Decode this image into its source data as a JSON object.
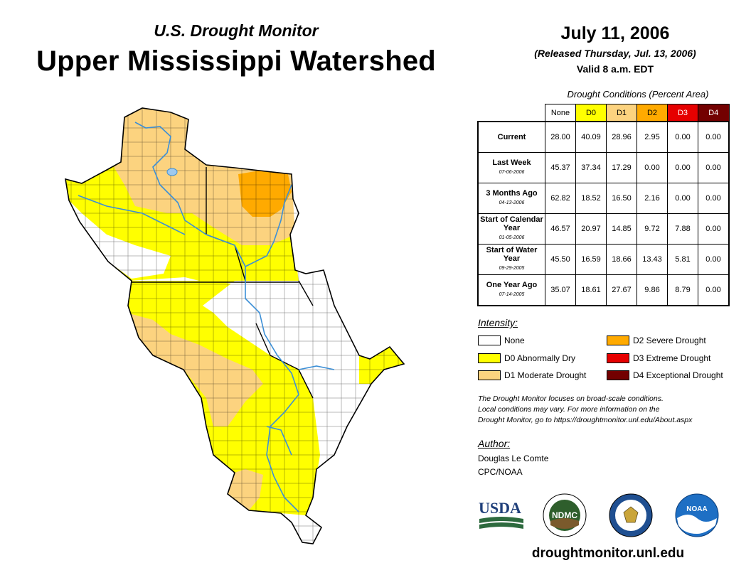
{
  "header": {
    "subtitle": "U.S. Drought Monitor",
    "title": "Upper Mississippi Watershed",
    "date": "July 11, 2006",
    "released": "(Released Thursday, Jul. 13, 2006)",
    "valid": "Valid 8 a.m. EDT"
  },
  "table": {
    "caption": "Drought Conditions (Percent Area)",
    "columns": [
      "None",
      "D0",
      "D1",
      "D2",
      "D3",
      "D4"
    ],
    "column_colors": [
      "#ffffff",
      "#ffff00",
      "#fcd37f",
      "#ffaa00",
      "#e60000",
      "#730000"
    ],
    "rows": [
      {
        "label": "Current",
        "date": "",
        "values": [
          "28.00",
          "40.09",
          "28.96",
          "2.95",
          "0.00",
          "0.00"
        ]
      },
      {
        "label": "Last Week",
        "date": "07-06-2006",
        "values": [
          "45.37",
          "37.34",
          "17.29",
          "0.00",
          "0.00",
          "0.00"
        ]
      },
      {
        "label": "3 Months Ago",
        "date": "04-13-2006",
        "values": [
          "62.82",
          "18.52",
          "16.50",
          "2.16",
          "0.00",
          "0.00"
        ]
      },
      {
        "label": "Start of Calendar Year",
        "date": "01-05-2006",
        "values": [
          "46.57",
          "20.97",
          "14.85",
          "9.72",
          "7.88",
          "0.00"
        ]
      },
      {
        "label": "Start of Water Year",
        "date": "09-29-2005",
        "values": [
          "45.50",
          "16.59",
          "18.66",
          "13.43",
          "5.81",
          "0.00"
        ]
      },
      {
        "label": "One Year Ago",
        "date": "07-14-2005",
        "values": [
          "35.07",
          "18.61",
          "27.67",
          "9.86",
          "8.79",
          "0.00"
        ]
      }
    ]
  },
  "legend": {
    "title": "Intensity:",
    "items": [
      {
        "label": "None",
        "color": "#ffffff"
      },
      {
        "label": "D0 Abnormally Dry",
        "color": "#ffff00"
      },
      {
        "label": "D1 Moderate Drought",
        "color": "#fcd37f"
      },
      {
        "label": "D2 Severe Drought",
        "color": "#ffaa00"
      },
      {
        "label": "D3 Extreme Drought",
        "color": "#e60000"
      },
      {
        "label": "D4 Exceptional Drought",
        "color": "#730000"
      }
    ]
  },
  "note": {
    "line1": "The Drought Monitor focuses on broad-scale conditions.",
    "line2": "Local conditions may vary. For more information on the",
    "line3": "Drought Monitor, go to https://droughtmonitor.unl.edu/About.aspx"
  },
  "author": {
    "title": "Author:",
    "name": "Douglas Le Comte",
    "org": "CPC/NOAA"
  },
  "logos": {
    "usda": "USDA",
    "ndmc": "NDMC",
    "noaa": "NOAA",
    "commerce_icon": "eagle-seal-icon"
  },
  "footer": {
    "website": "droughtmonitor.unl.edu"
  },
  "colors": {
    "none": "#ffffff",
    "d0": "#ffff00",
    "d1": "#fcd37f",
    "d2": "#ffaa00",
    "water": "#3c8fd6",
    "lake": "#9ec9ef"
  }
}
